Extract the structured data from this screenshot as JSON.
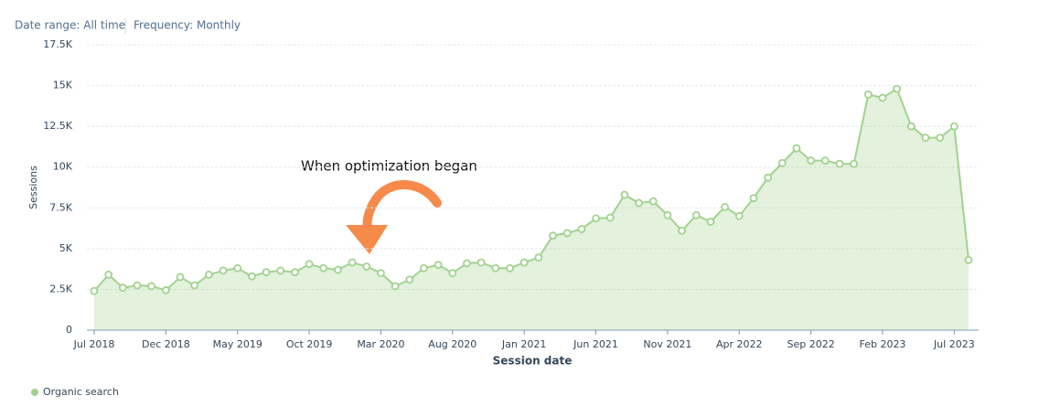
{
  "chart_data": {
    "type": "line",
    "filters": [
      "Date range: All time",
      "Frequency: Monthly"
    ],
    "annotation": "When optimization began",
    "x_label": "Session date",
    "y_label": "Sessions",
    "categories": [
      "Jul 2018",
      null,
      null,
      null,
      null,
      "Dec 2018",
      null,
      null,
      null,
      null,
      "May 2019",
      null,
      null,
      null,
      null,
      "Oct 2019",
      null,
      null,
      null,
      null,
      "Mar 2020",
      null,
      null,
      null,
      null,
      "Aug 2020",
      null,
      null,
      null,
      null,
      "Jan 2021",
      null,
      null,
      null,
      null,
      "Jun 2021",
      null,
      null,
      null,
      null,
      "Nov 2021",
      null,
      null,
      null,
      null,
      "Apr 2022",
      null,
      null,
      null,
      null,
      "Sep 2022",
      null,
      null,
      null,
      null,
      "Feb 2023",
      null,
      null,
      null,
      null,
      "Jul 2023",
      null
    ],
    "series": [
      {
        "name": "Organic search",
        "color": "#a2d28f",
        "values": [
          2400,
          3400,
          2600,
          2750,
          2700,
          2450,
          3250,
          2750,
          3400,
          3650,
          3800,
          3300,
          3550,
          3650,
          3550,
          4050,
          3800,
          3700,
          4150,
          3900,
          3500,
          2700,
          3100,
          3800,
          4000,
          3500,
          4100,
          4150,
          3800,
          3800,
          4150,
          4450,
          5800,
          5950,
          6200,
          6850,
          6900,
          8300,
          7800,
          7900,
          7050,
          6100,
          7050,
          6650,
          7550,
          7000,
          8100,
          9350,
          10250,
          11150,
          10400,
          10400,
          10200,
          10200,
          14450,
          14250,
          14800,
          12500,
          11800,
          11800,
          12500,
          4300
        ]
      }
    ],
    "ylim": [
      0,
      17500
    ],
    "yticks": [
      0,
      {
        "value": 2500,
        "label": "2.5K"
      },
      {
        "value": 5000,
        "label": "5K"
      },
      {
        "value": 7500,
        "label": "7.5K"
      },
      {
        "value": 10000,
        "label": "10K"
      },
      {
        "value": 12500,
        "label": "12.5K"
      },
      {
        "value": 15000,
        "label": "15K"
      },
      {
        "value": 17500,
        "label": "17.5K"
      }
    ],
    "grid": true
  }
}
